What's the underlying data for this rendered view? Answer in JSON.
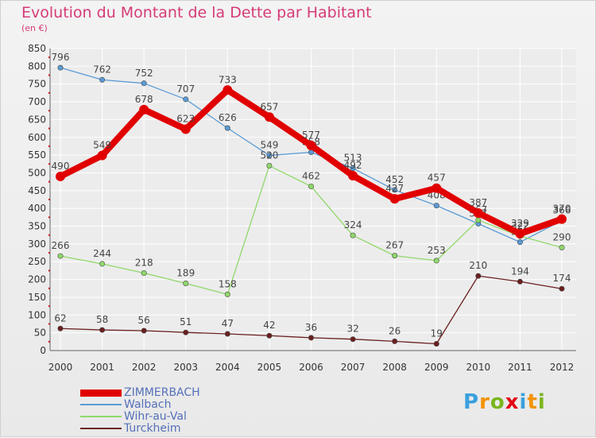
{
  "header": {
    "title": "Evolution du Montant de la Dette par Habitant",
    "subtitle": "(en €)"
  },
  "logo": {
    "letters": [
      "P",
      "r",
      "o",
      "x",
      "i",
      "t",
      "i"
    ],
    "text": "Proxiti"
  },
  "colors": {
    "title": "#d63b78",
    "axis_text": "#333333",
    "grid": "#ffffff",
    "legend_text": "#5470b8"
  },
  "chart_data": {
    "type": "line",
    "title": "Evolution du Montant de la Dette par Habitant",
    "subtitle": "(en €)",
    "xlabel": "",
    "ylabel": "",
    "x": [
      "2000",
      "2001",
      "2002",
      "2003",
      "2004",
      "2005",
      "2006",
      "2007",
      "2008",
      "2009",
      "2010",
      "2011",
      "2012"
    ],
    "ylim": [
      0,
      850
    ],
    "yticks": [
      0,
      50,
      100,
      150,
      200,
      250,
      300,
      350,
      400,
      450,
      500,
      550,
      600,
      650,
      700,
      750,
      800,
      850
    ],
    "grid": true,
    "legend_position": "bottom-left",
    "series": [
      {
        "name": "ZIMMERBACH",
        "color": "#e10000",
        "width": "thick",
        "values": [
          490,
          549,
          678,
          623,
          733,
          657,
          577,
          492,
          427,
          457,
          387,
          329,
          370
        ]
      },
      {
        "name": "Walbach",
        "color": "#5b9bd5",
        "width": "thin",
        "values": [
          796,
          762,
          752,
          707,
          626,
          549,
          558,
          513,
          452,
          408,
          357,
          305,
          366
        ]
      },
      {
        "name": "Wihr-au-Val",
        "color": "#90d86a",
        "width": "thin",
        "values": [
          266,
          244,
          218,
          189,
          158,
          520,
          462,
          324,
          267,
          253,
          367,
          322,
          290
        ]
      },
      {
        "name": "Turckheim",
        "color": "#6b1f1f",
        "width": "thin",
        "values": [
          62,
          58,
          56,
          51,
          47,
          42,
          36,
          32,
          26,
          19,
          210,
          194,
          174
        ]
      }
    ]
  }
}
